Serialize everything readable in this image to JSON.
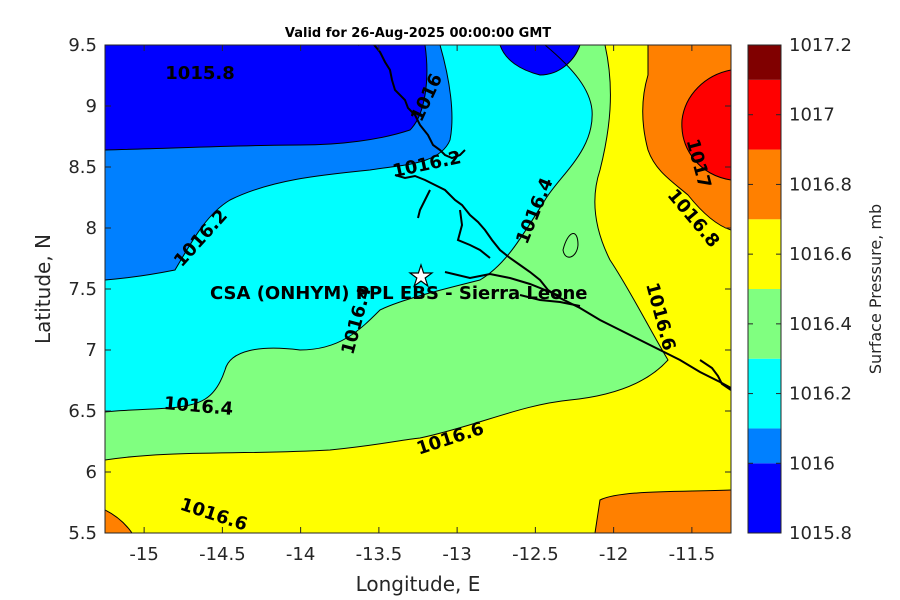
{
  "title": "Valid for 26-Aug-2025 00:00:00 GMT",
  "xlabel": "Longitude, E",
  "ylabel": "Latitude, N",
  "x_ticks": [
    "-15",
    "-14.5",
    "-14",
    "-13.5",
    "-13",
    "-12.5",
    "-12",
    "-11.5"
  ],
  "y_ticks": [
    "9.5",
    "9",
    "8.5",
    "8",
    "7.5",
    "7",
    "6.5",
    "6",
    "5.5"
  ],
  "colorbar": {
    "label": "Surface Pressure, mb",
    "ticks": [
      "1017.2",
      "1017",
      "1016.8",
      "1016.6",
      "1016.4",
      "1016.2",
      "1016",
      "1015.8"
    ],
    "levels": [
      {
        "from": 1015.8,
        "to": 1016.0,
        "color": "#0000ff"
      },
      {
        "from": 1016.0,
        "to": 1016.1,
        "color": "#0080ff"
      },
      {
        "from": 1016.1,
        "to": 1016.3,
        "color": "#00ffff"
      },
      {
        "from": 1016.3,
        "to": 1016.5,
        "color": "#80ff80"
      },
      {
        "from": 1016.5,
        "to": 1016.7,
        "color": "#ffff00"
      },
      {
        "from": 1016.7,
        "to": 1016.9,
        "color": "#ff8000"
      },
      {
        "from": 1016.9,
        "to": 1017.1,
        "color": "#ff0000"
      },
      {
        "from": 1017.1,
        "to": 1017.2,
        "color": "#800000"
      }
    ]
  },
  "contour_labels": [
    "1015.8",
    "1016",
    "1016.2",
    "1016.2",
    "1016.4",
    "1016.4",
    "1016.6",
    "1016.6",
    "1016.6",
    "1016.8",
    "1017",
    "1016.4"
  ],
  "site": {
    "label": "CSA (ONHYM) PPL EBS  - Sierra Leone",
    "lon": -13.2,
    "lat": 7.6,
    "marker": "star"
  },
  "chart_data": {
    "type": "heatmap",
    "title": "Valid for 26-Aug-2025 00:00:00 GMT",
    "xlabel": "Longitude, E",
    "ylabel": "Latitude, N",
    "xlim": [
      -15.25,
      -11.25
    ],
    "ylim": [
      5.5,
      9.5
    ],
    "colorbar_label": "Surface Pressure, mb",
    "colorbar_range": [
      1015.8,
      1017.2
    ],
    "contour_levels": [
      1015.8,
      1016.0,
      1016.2,
      1016.4,
      1016.6,
      1016.8,
      1017.0
    ]
  }
}
